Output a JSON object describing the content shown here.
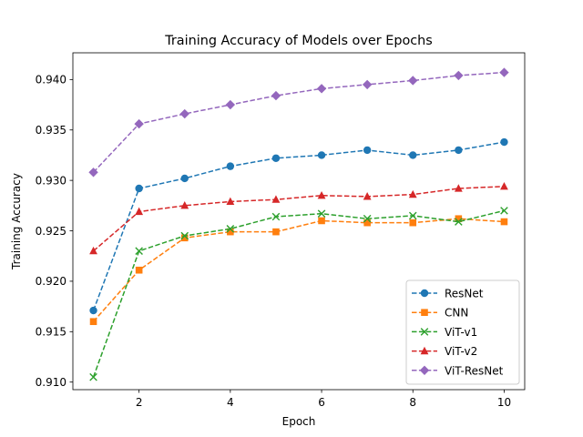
{
  "chart_data": {
    "type": "line",
    "title": "Training Accuracy of Models over Epochs",
    "xlabel": "Epoch",
    "ylabel": "Training Accuracy",
    "xlim": [
      0.55,
      10.45
    ],
    "ylim": [
      0.90925,
      0.94265
    ],
    "xticks": [
      2,
      4,
      6,
      8,
      10
    ],
    "yticks": [
      0.91,
      0.915,
      0.92,
      0.925,
      0.93,
      0.935,
      0.94
    ],
    "ytick_labels": [
      "0.910",
      "0.915",
      "0.920",
      "0.925",
      "0.930",
      "0.935",
      "0.940"
    ],
    "grid": false,
    "legend_position": "lower-right",
    "x": [
      1,
      2,
      3,
      4,
      5,
      6,
      7,
      8,
      9,
      10
    ],
    "series": [
      {
        "name": "ResNet",
        "color": "#1f77b4",
        "marker": "circle",
        "linestyle": "dashed",
        "values": [
          0.9171,
          0.9292,
          0.9302,
          0.9314,
          0.9322,
          0.9325,
          0.933,
          0.9325,
          0.933,
          0.9338
        ]
      },
      {
        "name": "CNN",
        "color": "#ff7f0e",
        "marker": "square",
        "linestyle": "dashed",
        "values": [
          0.916,
          0.9211,
          0.9243,
          0.9249,
          0.9249,
          0.926,
          0.9258,
          0.9258,
          0.9262,
          0.9259
        ]
      },
      {
        "name": "ViT-v1",
        "color": "#2ca02c",
        "marker": "x",
        "linestyle": "dashed",
        "values": [
          0.9105,
          0.923,
          0.9245,
          0.9252,
          0.9264,
          0.9267,
          0.9262,
          0.9265,
          0.9259,
          0.927
        ]
      },
      {
        "name": "ViT-v2",
        "color": "#d62728",
        "marker": "triangle",
        "linestyle": "dashed",
        "values": [
          0.923,
          0.9269,
          0.9275,
          0.9279,
          0.9281,
          0.9285,
          0.9284,
          0.9286,
          0.9292,
          0.9294
        ]
      },
      {
        "name": "ViT-ResNet",
        "color": "#9467bd",
        "marker": "diamond",
        "linestyle": "dashed",
        "values": [
          0.9308,
          0.9356,
          0.9366,
          0.9375,
          0.9384,
          0.9391,
          0.9395,
          0.9399,
          0.9404,
          0.9407
        ]
      }
    ]
  }
}
